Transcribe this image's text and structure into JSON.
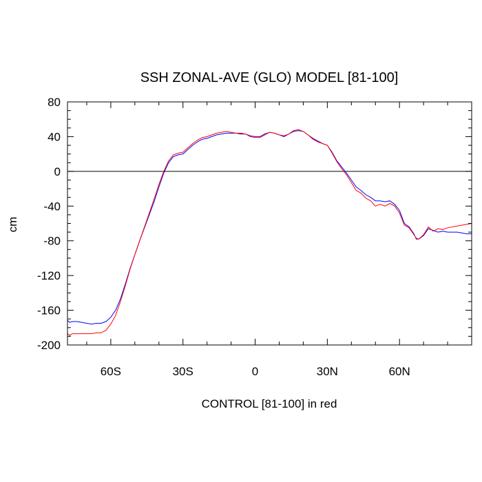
{
  "chart_data": {
    "type": "line",
    "title": "SSH ZONAL-AVE (GLO) MODEL [81-100]",
    "xlabel": "CONTROL [81-100] in red",
    "ylabel": "cm",
    "xlim": [
      -78,
      90
    ],
    "ylim": [
      -200,
      80
    ],
    "yticks": [
      80,
      40,
      0,
      -40,
      -80,
      -120,
      -160,
      -200
    ],
    "xticks": [
      {
        "value": -60,
        "label": "60S"
      },
      {
        "value": -30,
        "label": "30S"
      },
      {
        "value": 0,
        "label": "0"
      },
      {
        "value": 30,
        "label": "30N"
      },
      {
        "value": 60,
        "label": "60N"
      }
    ],
    "zero_line": true,
    "grid": false,
    "series": [
      {
        "color": "#0000ff",
        "points": [
          [
            -78,
            -172
          ],
          [
            -77,
            -174
          ],
          [
            -76,
            -173
          ],
          [
            -74,
            -173
          ],
          [
            -72,
            -174
          ],
          [
            -70,
            -175
          ],
          [
            -68,
            -176
          ],
          [
            -66,
            -175
          ],
          [
            -64,
            -175
          ],
          [
            -62,
            -173
          ],
          [
            -60,
            -168
          ],
          [
            -58,
            -160
          ],
          [
            -56,
            -147
          ],
          [
            -54,
            -130
          ],
          [
            -52,
            -112
          ],
          [
            -50,
            -96
          ],
          [
            -48,
            -80
          ],
          [
            -46,
            -65
          ],
          [
            -44,
            -50
          ],
          [
            -42,
            -35
          ],
          [
            -40,
            -18
          ],
          [
            -38,
            -2
          ],
          [
            -36,
            10
          ],
          [
            -34,
            17
          ],
          [
            -32,
            19
          ],
          [
            -30,
            20
          ],
          [
            -28,
            25
          ],
          [
            -26,
            30
          ],
          [
            -24,
            34
          ],
          [
            -22,
            37
          ],
          [
            -20,
            38
          ],
          [
            -18,
            40
          ],
          [
            -16,
            42
          ],
          [
            -14,
            43
          ],
          [
            -12,
            44
          ],
          [
            -10,
            44
          ],
          [
            -8,
            44
          ],
          [
            -6,
            43
          ],
          [
            -4,
            43
          ],
          [
            -2,
            41
          ],
          [
            0,
            40
          ],
          [
            2,
            40
          ],
          [
            4,
            43
          ],
          [
            6,
            45
          ],
          [
            8,
            44
          ],
          [
            10,
            42
          ],
          [
            12,
            40
          ],
          [
            14,
            43
          ],
          [
            16,
            46
          ],
          [
            18,
            47
          ],
          [
            20,
            46
          ],
          [
            22,
            42
          ],
          [
            24,
            38
          ],
          [
            26,
            35
          ],
          [
            28,
            32
          ],
          [
            30,
            30
          ],
          [
            32,
            22
          ],
          [
            34,
            12
          ],
          [
            36,
            5
          ],
          [
            38,
            -2
          ],
          [
            40,
            -10
          ],
          [
            42,
            -18
          ],
          [
            44,
            -22
          ],
          [
            46,
            -27
          ],
          [
            48,
            -30
          ],
          [
            50,
            -34
          ],
          [
            52,
            -34
          ],
          [
            54,
            -35
          ],
          [
            56,
            -34
          ],
          [
            58,
            -38
          ],
          [
            60,
            -45
          ],
          [
            62,
            -60
          ],
          [
            64,
            -64
          ],
          [
            66,
            -72
          ],
          [
            67,
            -78
          ],
          [
            68,
            -78
          ],
          [
            70,
            -74
          ],
          [
            72,
            -66
          ],
          [
            74,
            -68
          ],
          [
            76,
            -70
          ],
          [
            78,
            -69
          ],
          [
            80,
            -70
          ],
          [
            84,
            -70
          ],
          [
            88,
            -72
          ],
          [
            90,
            -72
          ]
        ]
      },
      {
        "color": "#ff0000",
        "points": [
          [
            -78,
            -187
          ],
          [
            -77,
            -189
          ],
          [
            -76,
            -187
          ],
          [
            -74,
            -187
          ],
          [
            -72,
            -187
          ],
          [
            -70,
            -187
          ],
          [
            -68,
            -187
          ],
          [
            -66,
            -186
          ],
          [
            -64,
            -186
          ],
          [
            -62,
            -183
          ],
          [
            -60,
            -176
          ],
          [
            -58,
            -166
          ],
          [
            -56,
            -150
          ],
          [
            -54,
            -132
          ],
          [
            -52,
            -113
          ],
          [
            -50,
            -96
          ],
          [
            -48,
            -80
          ],
          [
            -46,
            -64
          ],
          [
            -44,
            -48
          ],
          [
            -42,
            -32
          ],
          [
            -40,
            -15
          ],
          [
            -38,
            0
          ],
          [
            -36,
            12
          ],
          [
            -34,
            19
          ],
          [
            -32,
            21
          ],
          [
            -30,
            22
          ],
          [
            -28,
            27
          ],
          [
            -26,
            32
          ],
          [
            -24,
            36
          ],
          [
            -22,
            39
          ],
          [
            -20,
            40
          ],
          [
            -18,
            42
          ],
          [
            -16,
            44
          ],
          [
            -14,
            45
          ],
          [
            -12,
            46
          ],
          [
            -10,
            45
          ],
          [
            -8,
            44
          ],
          [
            -6,
            44
          ],
          [
            -4,
            43
          ],
          [
            -2,
            40
          ],
          [
            0,
            39
          ],
          [
            2,
            39
          ],
          [
            4,
            42
          ],
          [
            6,
            45
          ],
          [
            8,
            44
          ],
          [
            10,
            42
          ],
          [
            12,
            41
          ],
          [
            14,
            43
          ],
          [
            16,
            47
          ],
          [
            18,
            48
          ],
          [
            20,
            46
          ],
          [
            22,
            42
          ],
          [
            24,
            37
          ],
          [
            26,
            34
          ],
          [
            28,
            32
          ],
          [
            30,
            30
          ],
          [
            32,
            21
          ],
          [
            34,
            11
          ],
          [
            36,
            3
          ],
          [
            38,
            -4
          ],
          [
            40,
            -13
          ],
          [
            42,
            -22
          ],
          [
            44,
            -25
          ],
          [
            46,
            -31
          ],
          [
            48,
            -34
          ],
          [
            50,
            -40
          ],
          [
            52,
            -38
          ],
          [
            54,
            -40
          ],
          [
            56,
            -37
          ],
          [
            58,
            -40
          ],
          [
            60,
            -48
          ],
          [
            62,
            -62
          ],
          [
            64,
            -65
          ],
          [
            66,
            -73
          ],
          [
            67,
            -77
          ],
          [
            68,
            -78
          ],
          [
            70,
            -73
          ],
          [
            72,
            -64
          ],
          [
            74,
            -69
          ],
          [
            76,
            -66
          ],
          [
            78,
            -67
          ],
          [
            80,
            -65
          ],
          [
            84,
            -63
          ],
          [
            88,
            -61
          ],
          [
            90,
            -60
          ]
        ]
      }
    ]
  }
}
